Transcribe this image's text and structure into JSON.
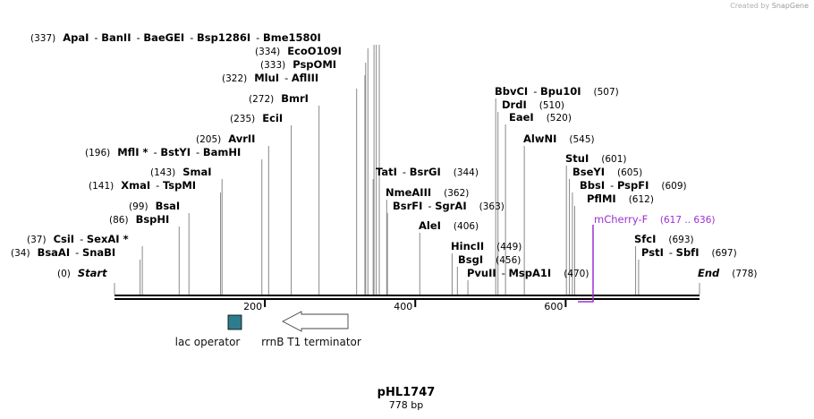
{
  "credit": {
    "prefix": "Created by",
    "brand": "SnapGene"
  },
  "map": {
    "name": "pHL1747",
    "length_label": "778 bp",
    "length": 778,
    "ticks": [
      "200",
      "400",
      "600"
    ]
  },
  "sites": [
    {
      "pos": "(337)",
      "names": [
        "ApaI",
        "BanII",
        "BaeGEI",
        "Bsp1286I",
        "Bme1580I"
      ],
      "bp": 337
    },
    {
      "pos": "(334)",
      "names": [
        "EcoO109I"
      ],
      "bp": 334
    },
    {
      "pos": "(333)",
      "names": [
        "PspOMI"
      ],
      "bp": 333
    },
    {
      "pos": "(322)",
      "names": [
        "MluI",
        "AflIII"
      ],
      "bp": 322
    },
    {
      "pos": "(272)",
      "names": [
        "BmrI"
      ],
      "bp": 272
    },
    {
      "pos": "(235)",
      "names": [
        "EciI"
      ],
      "bp": 235
    },
    {
      "pos": "(205)",
      "names": [
        "AvrII"
      ],
      "bp": 205
    },
    {
      "pos": "(196)",
      "names": [
        "MflI *",
        "BstYI",
        "BamHI"
      ],
      "bp": 196
    },
    {
      "pos": "(143)",
      "names": [
        "SmaI"
      ],
      "bp": 143
    },
    {
      "pos": "(141)",
      "names": [
        "XmaI",
        "TspMI"
      ],
      "bp": 141
    },
    {
      "pos": "(99)",
      "names": [
        "BsaI"
      ],
      "bp": 99
    },
    {
      "pos": "(86)",
      "names": [
        "BspHI"
      ],
      "bp": 86
    },
    {
      "pos": "(37)",
      "names": [
        "CsiI",
        "SexAI *"
      ],
      "bp": 37
    },
    {
      "pos": "(34)",
      "names": [
        "BsaAI",
        "SnaBI"
      ],
      "bp": 34
    },
    {
      "pos": "(0)",
      "names": [
        "Start"
      ],
      "bp": 0,
      "italic": true
    },
    {
      "pos": "(507)",
      "names": [
        "BbvCI",
        "Bpu10I"
      ],
      "bp": 507
    },
    {
      "pos": "(510)",
      "names": [
        "DrdI"
      ],
      "bp": 510
    },
    {
      "pos": "(520)",
      "names": [
        "EaeI"
      ],
      "bp": 520
    },
    {
      "pos": "(545)",
      "names": [
        "AlwNI"
      ],
      "bp": 545
    },
    {
      "pos": "(344)",
      "names": [
        "TatI",
        "BsrGI"
      ],
      "bp": 344
    },
    {
      "pos": "(362)",
      "names": [
        "NmeAIII"
      ],
      "bp": 362
    },
    {
      "pos": "(363)",
      "names": [
        "BsrFI",
        "SgrAI"
      ],
      "bp": 363
    },
    {
      "pos": "(406)",
      "names": [
        "AleI"
      ],
      "bp": 406
    },
    {
      "pos": "(449)",
      "names": [
        "HincII"
      ],
      "bp": 449
    },
    {
      "pos": "(456)",
      "names": [
        "BsgI"
      ],
      "bp": 456
    },
    {
      "pos": "(470)",
      "names": [
        "PvuII",
        "MspA1I"
      ],
      "bp": 470
    },
    {
      "pos": "(601)",
      "names": [
        "StuI"
      ],
      "bp": 601
    },
    {
      "pos": "(605)",
      "names": [
        "BseYI"
      ],
      "bp": 605
    },
    {
      "pos": "(609)",
      "names": [
        "BbsI",
        "PspFI"
      ],
      "bp": 609
    },
    {
      "pos": "(612)",
      "names": [
        "PflMI"
      ],
      "bp": 612
    },
    {
      "pos": "(693)",
      "names": [
        "SfcI"
      ],
      "bp": 693
    },
    {
      "pos": "(697)",
      "names": [
        "PstI",
        "SbfI"
      ],
      "bp": 697
    },
    {
      "pos": "(778)",
      "names": [
        "End"
      ],
      "bp": 778,
      "italic": true
    }
  ],
  "primer": {
    "name": "mCherry-F",
    "range": "(617 .. 636)",
    "color": "#9b30d0"
  },
  "features": {
    "lac_operator": {
      "label": "lac operator",
      "color": "#2e7d8f"
    },
    "terminator": {
      "label": "rrnB T1 terminator"
    }
  }
}
